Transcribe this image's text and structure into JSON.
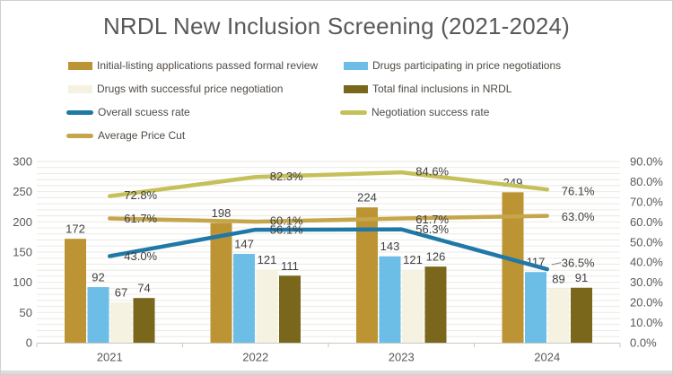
{
  "title": "NRDL New Inclusion Screening (2021-2024)",
  "chart_data": {
    "type": "combo clustered-bar + line, dual axis",
    "categories": [
      "2021",
      "2022",
      "2023",
      "2024"
    ],
    "bar_series": [
      {
        "name": "Initial-listing applications passed formal review",
        "color": "#BC9433",
        "axis": "left",
        "values": [
          172,
          198,
          224,
          249
        ]
      },
      {
        "name": "Drugs participating in price negotiations",
        "color": "#6CBEE7",
        "axis": "left",
        "values": [
          92,
          147,
          143,
          117
        ]
      },
      {
        "name": "Drugs with successful price negotiation",
        "color": "#F6F2E2",
        "axis": "left",
        "values": [
          67,
          121,
          121,
          89
        ]
      },
      {
        "name": "Total final inclusions in NRDL",
        "color": "#7A671C",
        "axis": "left",
        "values": [
          74,
          111,
          126,
          91
        ]
      }
    ],
    "line_series": [
      {
        "name": "Overall scuess rate",
        "color": "#1F78A6",
        "axis": "right",
        "values": [
          43.0,
          56.1,
          56.3,
          36.5
        ],
        "labels": [
          "43.0%",
          "56.1%",
          "56.3%",
          "36.5%"
        ]
      },
      {
        "name": "Negotiation success rate",
        "color": "#C5C05A",
        "axis": "right",
        "values": [
          72.8,
          82.3,
          84.6,
          76.1
        ],
        "labels": [
          "72.8%",
          "82.3%",
          "84.6%",
          "76.1%"
        ]
      },
      {
        "name": "Average Price Cut",
        "color": "#C5A64A",
        "axis": "right",
        "values": [
          61.7,
          60.1,
          61.7,
          63.0
        ],
        "labels": [
          "61.7%",
          "60.1%",
          "61.7%",
          "63.0%"
        ]
      }
    ],
    "left_axis": {
      "min": 0,
      "max": 300,
      "step": 50,
      "ticks": [
        "0",
        "50",
        "100",
        "150",
        "200",
        "250",
        "300"
      ]
    },
    "right_axis": {
      "min": 0,
      "max": 90,
      "step": 10,
      "ticks": [
        "0.0%",
        "10.0%",
        "20.0%",
        "30.0%",
        "40.0%",
        "50.0%",
        "60.0%",
        "70.0%",
        "80.0%",
        "90.0%"
      ]
    },
    "grid": {
      "horizontal_minor_step": 10,
      "visible": true
    },
    "legend_position": "top, two columns, four rows"
  },
  "styles": {
    "title_color": "#595959",
    "axis_text_color": "#595959",
    "data_label_color": "#404040",
    "legend_text_color": "#4F4A45",
    "gridline_color": "#ECEAE2",
    "axis_line_color": "#C9C7C1",
    "leader_line_color": "#7F7F7F",
    "background": "#FFFFFF",
    "border_color": "#CFCFCF"
  }
}
